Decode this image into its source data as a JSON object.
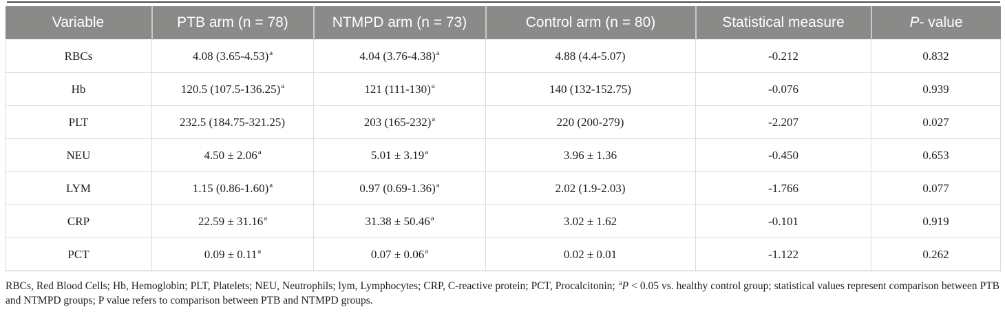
{
  "colors": {
    "header_bg": "#8a8a89",
    "header_text": "#ffffff",
    "body_text": "#1c1c1c",
    "row_border": "#dcdcdc",
    "bottom_border": "#bdbdbd",
    "top_rule": "#4f4f4f"
  },
  "table": {
    "columns": {
      "variable": "Variable",
      "ptb": "PTB arm (n = 78)",
      "ntmpd": "NTMPD arm (n = 73)",
      "control": "Control arm (n = 80)",
      "stat": "Statistical measure",
      "p_italic": "P",
      "p_rest": "- value"
    },
    "rows": [
      {
        "variable": "RBCs",
        "ptb": "4.08 (3.65-4.53)",
        "ptb_sup": "a",
        "ntmpd": "4.04 (3.76-4.38)",
        "ntmpd_sup": "a",
        "control": "4.88 (4.4-5.07)",
        "control_sup": "",
        "stat": "-0.212",
        "p": "0.832"
      },
      {
        "variable": "Hb",
        "ptb": "120.5 (107.5-136.25)",
        "ptb_sup": "a",
        "ntmpd": "121 (111-130)",
        "ntmpd_sup": "a",
        "control": "140 (132-152.75)",
        "control_sup": "",
        "stat": "-0.076",
        "p": "0.939"
      },
      {
        "variable": "PLT",
        "ptb": "232.5 (184.75-321.25)",
        "ptb_sup": "",
        "ntmpd": "203 (165-232)",
        "ntmpd_sup": "a",
        "control": "220 (200-279)",
        "control_sup": "",
        "stat": "-2.207",
        "p": "0.027"
      },
      {
        "variable": "NEU",
        "ptb": "4.50 ± 2.06",
        "ptb_sup": "a",
        "ntmpd": "5.01 ± 3.19",
        "ntmpd_sup": "a",
        "control": "3.96 ± 1.36",
        "control_sup": "",
        "stat": "-0.450",
        "p": "0.653"
      },
      {
        "variable": "LYM",
        "ptb": "1.15 (0.86-1.60)",
        "ptb_sup": "a",
        "ntmpd": "0.97 (0.69-1.36)",
        "ntmpd_sup": "a",
        "control": "2.02 (1.9-2.03)",
        "control_sup": "",
        "stat": "-1.766",
        "p": "0.077"
      },
      {
        "variable": "CRP",
        "ptb": "22.59 ± 31.16",
        "ptb_sup": "a",
        "ntmpd": "31.38 ± 50.46",
        "ntmpd_sup": "a",
        "control": "3.02 ± 1.62",
        "control_sup": "",
        "stat": "-0.101",
        "p": "0.919"
      },
      {
        "variable": "PCT",
        "ptb": "0.09 ± 0.11",
        "ptb_sup": "a",
        "ntmpd": "0.07 ± 0.06",
        "ntmpd_sup": "a",
        "control": "0.02 ± 0.01",
        "control_sup": "",
        "stat": "-1.122",
        "p": "0.262"
      }
    ]
  },
  "footnote": {
    "part1": "RBCs, Red Blood Cells; Hb, Hemoglobin; PLT, Platelets; NEU, Neutrophils; lym, Lymphocytes; CRP, C-reactive protein; PCT, Procalcitonin; ",
    "sup": "a",
    "p_italic": "P",
    "part2": " < 0.05 vs. healthy control group; statistical values represent comparison between PTB and NTMPD groups; P value refers to comparison between PTB and NTMPD groups."
  }
}
